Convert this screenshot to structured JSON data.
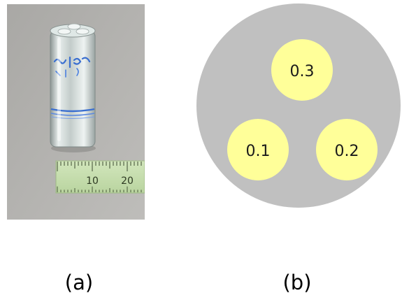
{
  "panel_a": {
    "label": "(a)",
    "ruler_labels": [
      "10",
      "20"
    ],
    "colors": {
      "background": "#b4b3b0",
      "ruler": "#c8e0b0",
      "vial_glass": "#d6e2e0",
      "vial_marking": "#3a6fd0"
    }
  },
  "panel_b": {
    "label": "(b)",
    "disk_color": "#c0c0c0",
    "insert_color": "#ffff99",
    "inserts": [
      {
        "value": "0.3"
      },
      {
        "value": "0.1"
      },
      {
        "value": "0.2"
      }
    ]
  }
}
